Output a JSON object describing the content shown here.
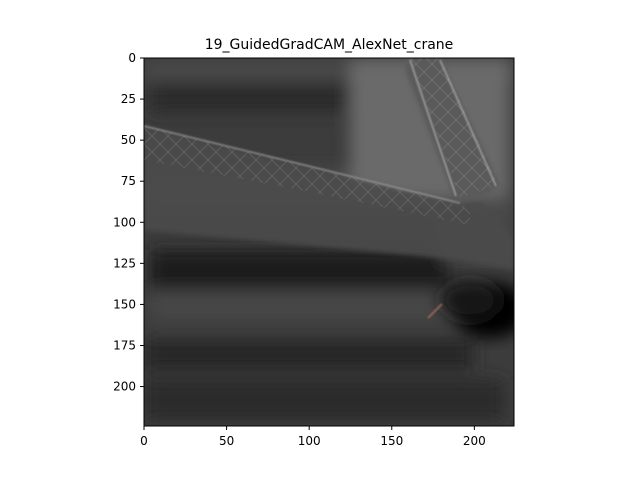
{
  "chart_data": {
    "type": "heatmap",
    "title": "19_GuidedGradCAM_AlexNet_crane",
    "xlabel": "",
    "ylabel": "",
    "xlim": [
      0,
      224
    ],
    "ylim": [
      224,
      0
    ],
    "x_ticks": [
      0,
      50,
      100,
      150,
      200
    ],
    "y_ticks": [
      0,
      25,
      50,
      75,
      100,
      125,
      150,
      175,
      200
    ],
    "grid": false,
    "colormap": "grayscale",
    "image_content": "grayscale saliency map of a crane: diagonal lattice boom from upper-left to right, vertical lattice mast in upper-right, dark blob near right edge around y=150",
    "colors": {
      "background_gray": "#3a3a3a",
      "light_gray": "#8a8a8a",
      "dark": "#0a0a0a"
    }
  }
}
